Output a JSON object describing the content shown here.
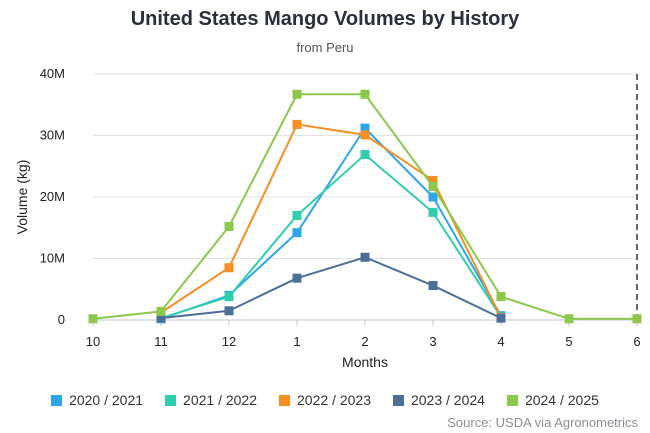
{
  "chart_data": {
    "type": "line",
    "title": "United States Mango Volumes by History",
    "subtitle": "from Peru",
    "xlabel": "Months",
    "ylabel": "Volume (kg)",
    "x": [
      "10",
      "11",
      "12",
      "1",
      "2",
      "3",
      "4",
      "5",
      "6"
    ],
    "yticks": [
      "0",
      "10M",
      "20M",
      "30M",
      "40M"
    ],
    "ylim": [
      0,
      40000000
    ],
    "grid": "horizontal",
    "legend_position": "bottom",
    "series": [
      {
        "name": "2020 / 2021",
        "color": "#2ea6ec",
        "values": [
          null,
          200000,
          4000000,
          14200000,
          31200000,
          20000000,
          700000,
          null,
          null
        ]
      },
      {
        "name": "2021 / 2022",
        "color": "#2fcfae",
        "values": [
          null,
          300000,
          3800000,
          17000000,
          26900000,
          17500000,
          500000,
          null,
          null
        ]
      },
      {
        "name": "2022 / 2023",
        "color": "#f58f23",
        "values": [
          null,
          1200000,
          8500000,
          31800000,
          30100000,
          22700000,
          400000,
          null,
          null
        ]
      },
      {
        "name": "2023 / 2024",
        "color": "#4b6f96",
        "values": [
          null,
          300000,
          1500000,
          6800000,
          10200000,
          5600000,
          300000,
          null,
          null
        ]
      },
      {
        "name": "2024 / 2025",
        "color": "#8cc84b",
        "values": [
          200000,
          1400000,
          15200000,
          36700000,
          36700000,
          21700000,
          3800000,
          200000,
          200000
        ]
      }
    ],
    "source": "Source: USDA via Agronometrics"
  }
}
